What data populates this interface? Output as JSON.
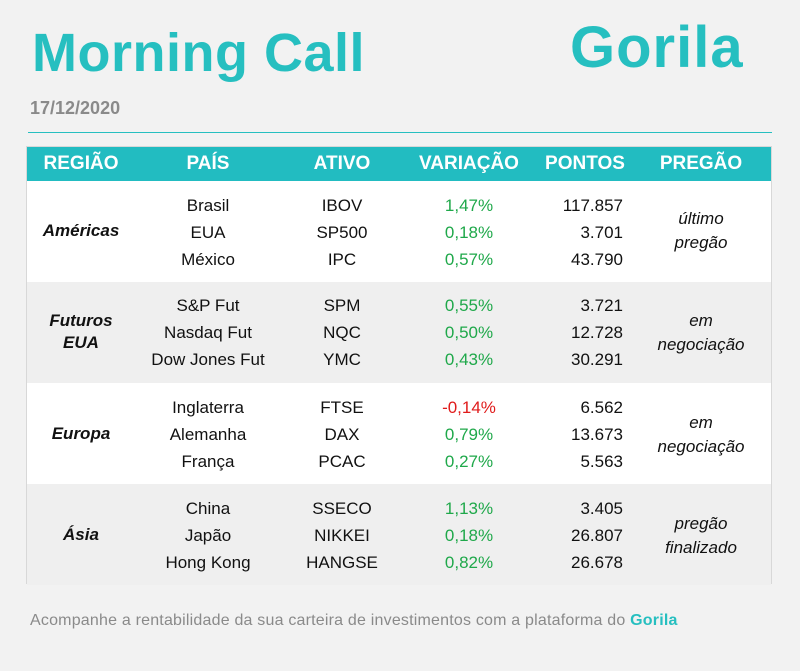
{
  "header": {
    "title": "Morning Call",
    "logo_text": "Gorila",
    "date": "17/12/2020"
  },
  "table": {
    "columns": [
      "REGIÃO",
      "PAÍS",
      "ATIVO",
      "VARIAÇÃO",
      "PONTOS",
      "PREGÃO"
    ],
    "groups": [
      {
        "region": "Américas",
        "pregao": [
          "último",
          "pregão"
        ],
        "rows": [
          {
            "pais": "Brasil",
            "ativo": "IBOV",
            "variacao": "1,47%",
            "pontos": "117.857"
          },
          {
            "pais": "EUA",
            "ativo": "SP500",
            "variacao": "0,18%",
            "pontos": "3.701"
          },
          {
            "pais": "México",
            "ativo": "IPC",
            "variacao": "0,57%",
            "pontos": "43.790"
          }
        ]
      },
      {
        "region": [
          "Futuros",
          "EUA"
        ],
        "pregao": [
          "em",
          "negociação"
        ],
        "rows": [
          {
            "pais": "S&P Fut",
            "ativo": "SPM",
            "variacao": "0,55%",
            "pontos": "3.721"
          },
          {
            "pais": "Nasdaq Fut",
            "ativo": "NQC",
            "variacao": "0,50%",
            "pontos": "12.728"
          },
          {
            "pais": "Dow Jones Fut",
            "ativo": "YMC",
            "variacao": "0,43%",
            "pontos": "30.291"
          }
        ]
      },
      {
        "region": "Europa",
        "pregao": [
          "em",
          "negociação"
        ],
        "rows": [
          {
            "pais": "Inglaterra",
            "ativo": "FTSE",
            "variacao": "-0,14%",
            "pontos": "6.562"
          },
          {
            "pais": "Alemanha",
            "ativo": "DAX",
            "variacao": "0,79%",
            "pontos": "13.673"
          },
          {
            "pais": "França",
            "ativo": "PCAC",
            "variacao": "0,27%",
            "pontos": "5.563"
          }
        ]
      },
      {
        "region": "Ásia",
        "pregao": [
          "pregão",
          "finalizado"
        ],
        "rows": [
          {
            "pais": "China",
            "ativo": "SSECO",
            "variacao": "1,13%",
            "pontos": "3.405"
          },
          {
            "pais": "Japão",
            "ativo": "NIKKEI",
            "variacao": "0,18%",
            "pontos": "26.807"
          },
          {
            "pais": "Hong Kong",
            "ativo": "HANGSE",
            "variacao": "0,82%",
            "pontos": "26.678"
          }
        ]
      }
    ]
  },
  "footer": {
    "text": "Acompanhe a rentabilidade da sua carteira de investimentos com a plataforma do",
    "brand": "Gorila"
  },
  "colors": {
    "accent": "#26bfc0",
    "header_bg": "#22bcc1",
    "positive": "#1fa84a",
    "negative": "#e01b1b"
  }
}
